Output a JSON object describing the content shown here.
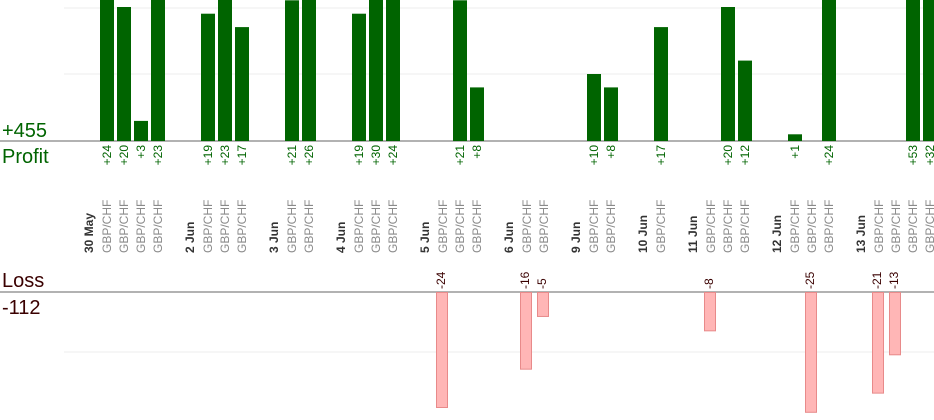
{
  "profit_total": "+455",
  "profit_label": "Profit",
  "loss_label": "Loss",
  "loss_total": "-112",
  "colors": {
    "profit_bar": "#006400",
    "profit_text": "#006400",
    "loss_bar": "#ffb6b6",
    "loss_bar_border": "#e88a8a",
    "loss_text": "#3a0000",
    "date_text": "#333333",
    "pair_text": "#8a8a8a",
    "grid": "#ececec",
    "axis": "#666666"
  },
  "chart_data": {
    "type": "bar",
    "pair": "GBP/CHF",
    "profit_ylim": [
      0,
      24
    ],
    "loss_ylim": [
      -24,
      0
    ],
    "groups": [
      {
        "date": "30 May",
        "trades": [
          24,
          20,
          3,
          23
        ]
      },
      {
        "date": "2 Jun",
        "trades": [
          19,
          23,
          17
        ]
      },
      {
        "date": "3 Jun",
        "trades": [
          21,
          26
        ]
      },
      {
        "date": "4 Jun",
        "trades": [
          19,
          30,
          24
        ]
      },
      {
        "date": "5 Jun",
        "trades": [
          -24,
          21,
          8
        ]
      },
      {
        "date": "6 Jun",
        "trades": [
          -16,
          -5
        ]
      },
      {
        "date": "9 Jun",
        "trades": [
          10,
          8
        ]
      },
      {
        "date": "10 Jun",
        "trades": [
          17
        ]
      },
      {
        "date": "11 Jun",
        "trades": [
          -8,
          20,
          12
        ]
      },
      {
        "date": "12 Jun",
        "trades": [
          1,
          -25,
          24
        ]
      },
      {
        "date": "13 Jun",
        "trades": [
          -21,
          -13,
          53,
          32
        ]
      }
    ]
  }
}
